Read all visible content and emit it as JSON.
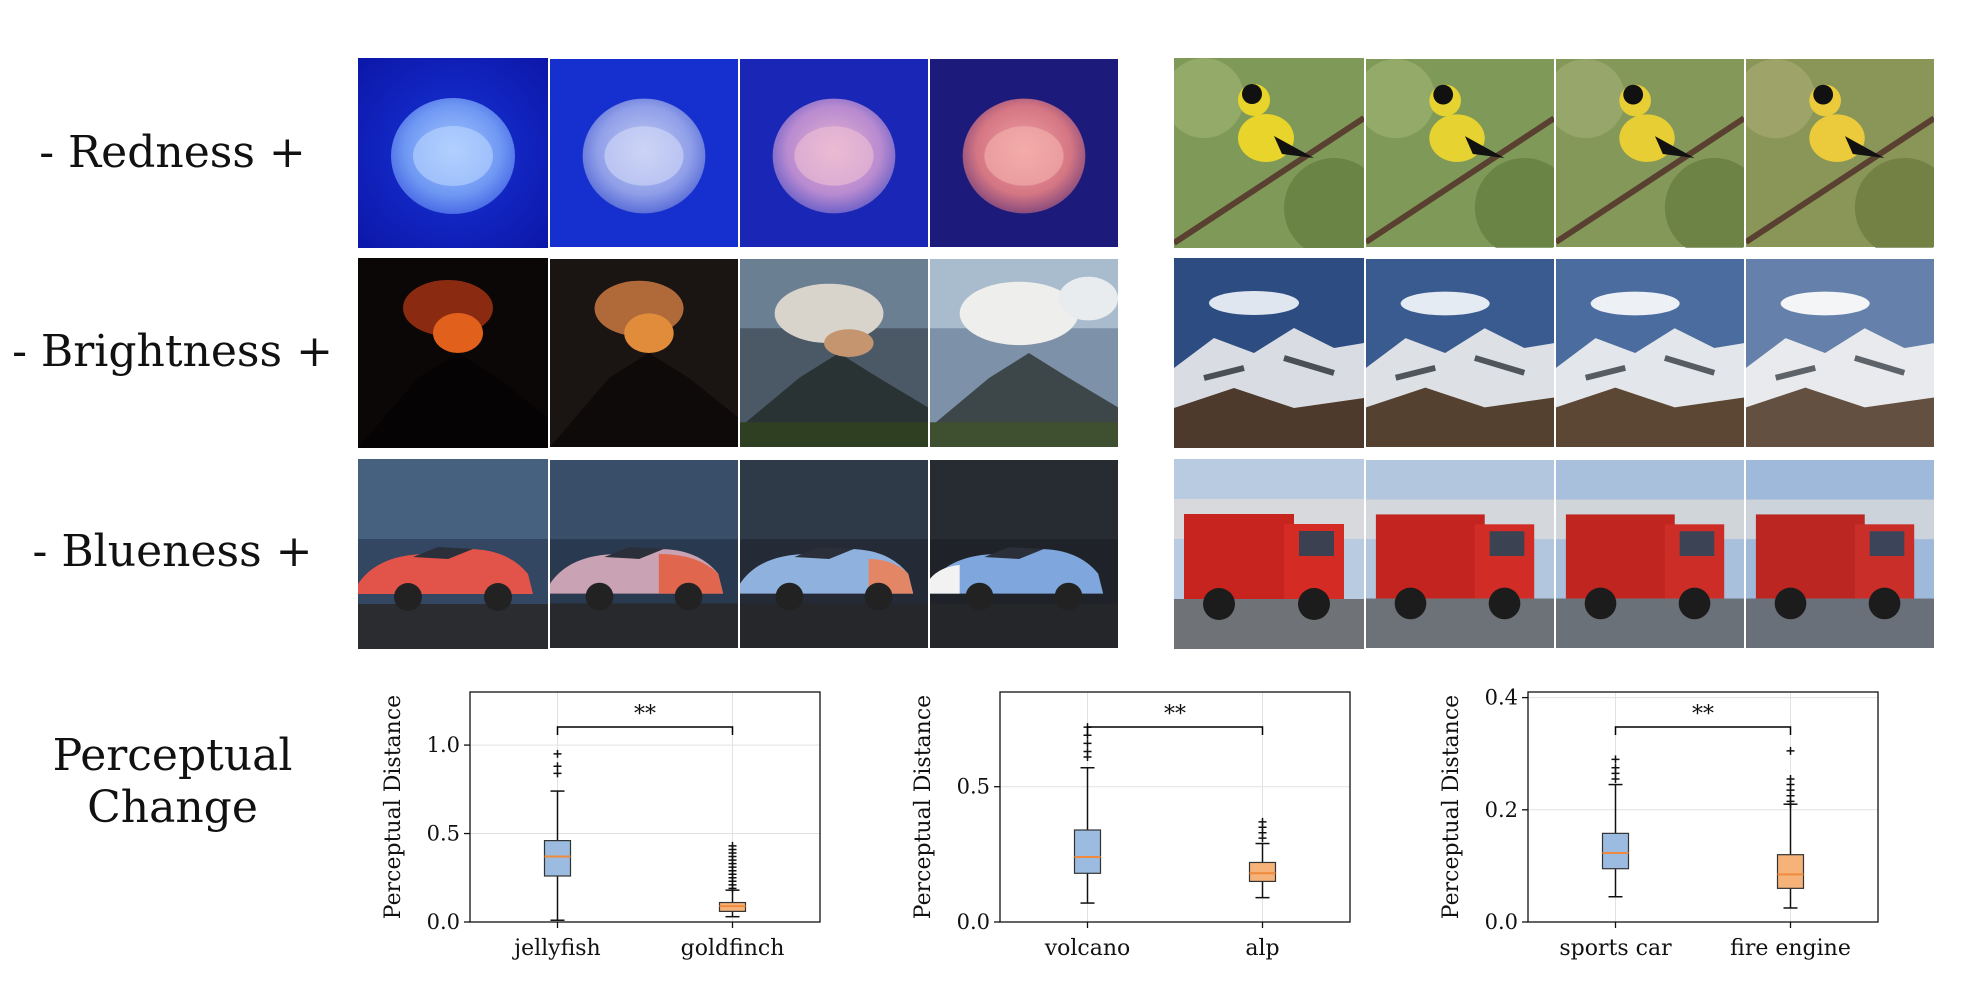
{
  "rows": [
    {
      "label": "- Redness +",
      "left_subject": "jellyfish",
      "right_subject": "goldfinch"
    },
    {
      "label": "- Brightness +",
      "left_subject": "volcano",
      "right_subject": "alp"
    },
    {
      "label": "- Blueness +",
      "left_subject": "sports car",
      "right_subject": "fire engine"
    }
  ],
  "perceptual_label": [
    "Perceptual",
    "Change"
  ],
  "colors": {
    "box_left": "#9bbce0",
    "box_right": "#f5b379",
    "median": "#f08a3c",
    "bracket": "#000000"
  },
  "chart_data": [
    {
      "type": "box",
      "ylabel": "Perceptual Distance",
      "categories": [
        "jellyfish",
        "goldfinch"
      ],
      "ylim": [
        0,
        1.3
      ],
      "yticks": [
        0.0,
        0.5,
        1.0
      ],
      "significance": "**",
      "boxes": [
        {
          "q1": 0.26,
          "median": 0.37,
          "q3": 0.46,
          "whislo": 0.01,
          "whishi": 0.74,
          "fliers": [
            0.84,
            0.88,
            0.95
          ]
        },
        {
          "q1": 0.06,
          "median": 0.09,
          "q3": 0.11,
          "whislo": 0.03,
          "whishi": 0.18,
          "fliers": [
            0.19,
            0.21,
            0.23,
            0.25,
            0.27,
            0.29,
            0.31,
            0.33,
            0.35,
            0.37,
            0.39,
            0.41,
            0.43
          ]
        }
      ],
      "grid": true
    },
    {
      "type": "box",
      "ylabel": "Perceptual Distance",
      "categories": [
        "volcano",
        "alp"
      ],
      "ylim": [
        0,
        0.85
      ],
      "yticks": [
        0.0,
        0.5
      ],
      "significance": "**",
      "boxes": [
        {
          "q1": 0.18,
          "median": 0.24,
          "q3": 0.34,
          "whislo": 0.07,
          "whishi": 0.57,
          "fliers": [
            0.61,
            0.63,
            0.66,
            0.69,
            0.72
          ]
        },
        {
          "q1": 0.15,
          "median": 0.18,
          "q3": 0.22,
          "whislo": 0.09,
          "whishi": 0.29,
          "fliers": [
            0.31,
            0.33,
            0.35,
            0.37
          ]
        }
      ],
      "grid": true
    },
    {
      "type": "box",
      "ylabel": "Perceptual Distance",
      "categories": [
        "sports car",
        "fire engine"
      ],
      "ylim": [
        0,
        0.41
      ],
      "yticks": [
        0.0,
        0.2,
        0.4
      ],
      "significance": "**",
      "boxes": [
        {
          "q1": 0.095,
          "median": 0.123,
          "q3": 0.158,
          "whislo": 0.045,
          "whishi": 0.245,
          "fliers": [
            0.255,
            0.265,
            0.275,
            0.29
          ]
        },
        {
          "q1": 0.06,
          "median": 0.085,
          "q3": 0.12,
          "whislo": 0.025,
          "whishi": 0.21,
          "fliers": [
            0.21,
            0.215,
            0.225,
            0.235,
            0.245,
            0.255,
            0.305
          ]
        }
      ],
      "grid": true
    }
  ]
}
